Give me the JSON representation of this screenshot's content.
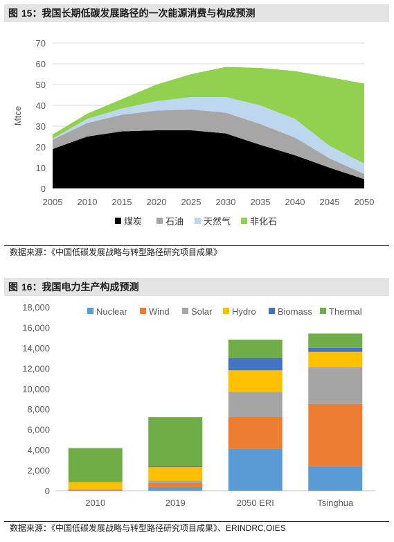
{
  "figure15": {
    "label": "图",
    "number": "15",
    "title": "：我国长期低碳发展路径的一次能源消费与构成预测",
    "source": "数据来源：《中国低碳发展战略与转型路径研究项目成果》"
  },
  "figure16": {
    "label": "图",
    "number": "16",
    "title": "：我国电力生产构成预测",
    "source_cn": "数据来源：《中国低碳发展战略与转型路径研究项目成果》、",
    "source_en": "ERINDRC,OIES"
  },
  "chart_data": [
    {
      "type": "area",
      "stacked": true,
      "x": [
        2005,
        2010,
        2015,
        2020,
        2025,
        2030,
        2035,
        2040,
        2045,
        2050
      ],
      "ylabel": "Mtce",
      "ylim": [
        0,
        70
      ],
      "yticks": [
        0,
        10,
        20,
        30,
        40,
        50,
        60,
        70
      ],
      "grid": true,
      "legend_position": "bottom",
      "series": [
        {
          "name": "煤炭",
          "color": "#000000",
          "values": [
            19,
            25,
            27.5,
            28,
            28,
            26.5,
            21,
            16,
            10,
            4.5
          ]
        },
        {
          "name": "石油",
          "color": "#a6a6a6",
          "values": [
            4.5,
            6.5,
            8,
            9.5,
            10,
            10,
            10,
            8.5,
            4.5,
            2.5
          ]
        },
        {
          "name": "天然气",
          "color": "#bdd7ee",
          "values": [
            0.5,
            2,
            3,
            4.5,
            6,
            7.5,
            9,
            9,
            6,
            5
          ]
        },
        {
          "name": "非化石",
          "color": "#92d050",
          "values": [
            2,
            2.5,
            4.5,
            8,
            11,
            14.5,
            18,
            23,
            33,
            38.5
          ]
        }
      ]
    },
    {
      "type": "bar",
      "stacked": true,
      "categories": [
        "2010",
        "2019",
        "2050 ERI",
        "Tsinghua"
      ],
      "ylim": [
        0,
        18000
      ],
      "yticks": [
        "0",
        "2,000",
        "4,000",
        "6,000",
        "8,000",
        "10,000",
        "12,000",
        "14,000",
        "16,000",
        "18,000"
      ],
      "grid": false,
      "legend_position": "top",
      "series": [
        {
          "name": "Nuclear",
          "color": "#5b9bd5",
          "values": [
            80,
            350,
            4100,
            2400
          ]
        },
        {
          "name": "Wind",
          "color": "#ed7d31",
          "values": [
            50,
            400,
            3100,
            6100
          ]
        },
        {
          "name": "Solar",
          "color": "#a5a5a5",
          "values": [
            0,
            250,
            2500,
            3600
          ]
        },
        {
          "name": "Hydro",
          "color": "#ffc000",
          "values": [
            700,
            1300,
            2100,
            1500
          ]
        },
        {
          "name": "Biomass",
          "color": "#4472c4",
          "values": [
            0,
            100,
            1200,
            400
          ]
        },
        {
          "name": "Thermal",
          "color": "#70ad47",
          "values": [
            3350,
            4800,
            1800,
            1400
          ]
        }
      ]
    }
  ]
}
